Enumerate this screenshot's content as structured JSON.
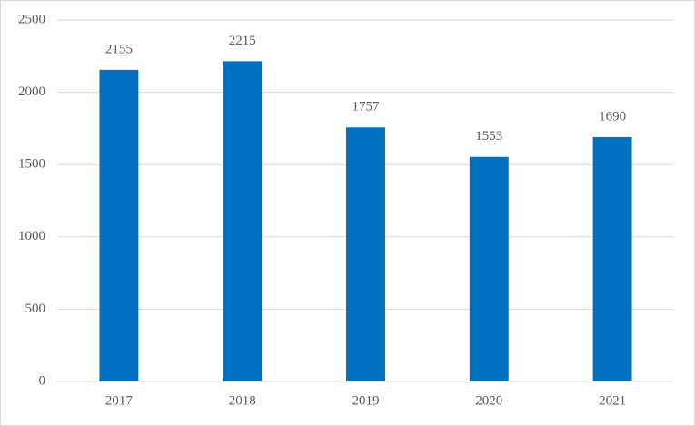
{
  "chart_data": {
    "type": "bar",
    "categories": [
      "2017",
      "2018",
      "2019",
      "2020",
      "2021"
    ],
    "values": [
      2155,
      2215,
      1757,
      1553,
      1690
    ],
    "color": "#0070c0",
    "ylim": [
      0,
      2500
    ],
    "yticks": [
      0,
      500,
      1000,
      1500,
      2000,
      2500
    ],
    "grid": true
  }
}
